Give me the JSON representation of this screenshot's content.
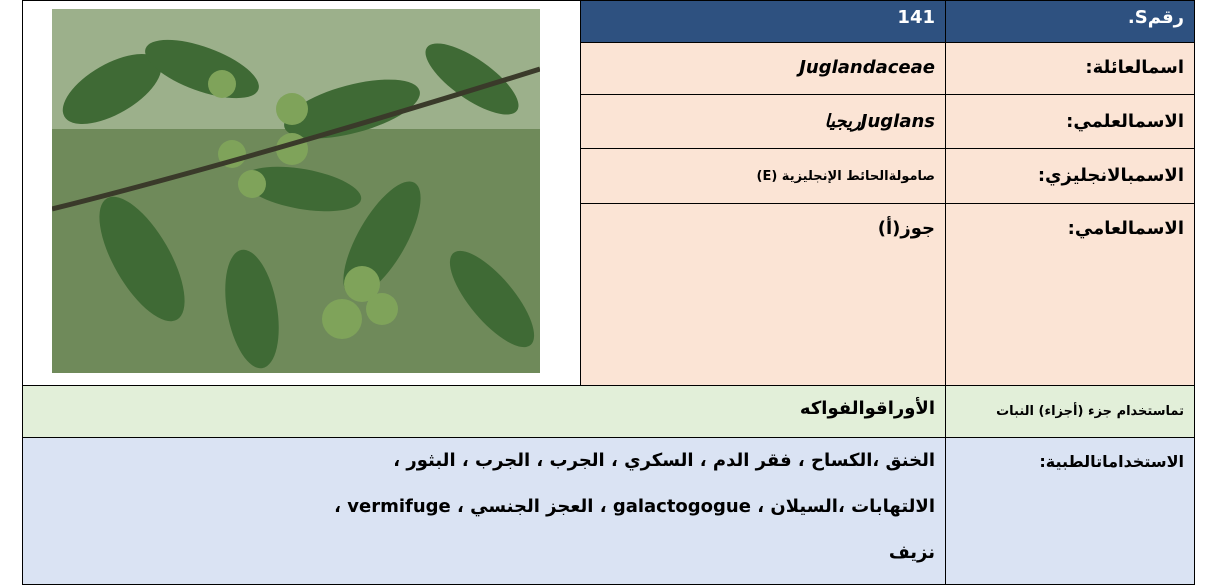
{
  "table": {
    "rows": [
      {
        "label": "رقمS.",
        "value": "141"
      },
      {
        "label": "اسم‏العائلة:",
        "value": "Juglandaceae"
      },
      {
        "label": "الاسم‏العلمي:",
        "value": "Juglansريجيا"
      },
      {
        "label": "الاسم‏بالانجليزي:",
        "value": "صامولة‏الحائط الإنجليزية (E)"
      },
      {
        "label": "الاسم‏العامي:",
        "value": "جوز(أ)"
      },
      {
        "label": "تم‏استخدام جزء (أجزاء) النبات",
        "value": "الأوراق‏والفواكه"
      },
      {
        "label": "الاستخدامات‏الطبية:",
        "lines": [
          "الخنق ،الكساح ، فقر الدم ، السكري ، الجرب ، الجرب ، البثور ،",
          "الالتهابات ،السيلان ، galactogogue ، العجز الجنسي ، vermifuge ،",
          "نزيف"
        ]
      }
    ]
  }
}
